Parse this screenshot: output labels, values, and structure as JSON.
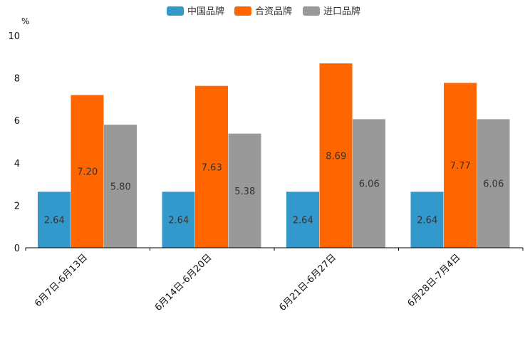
{
  "chart_data": {
    "type": "bar",
    "title": "",
    "ylabel": "%",
    "xlabel": "",
    "ylim": [
      0,
      10
    ],
    "yticks": [
      0,
      2,
      4,
      6,
      8,
      10
    ],
    "ytick_labels": [
      "0",
      "2",
      "4",
      "6",
      "8",
      "10"
    ],
    "categories": [
      "6月7日-6月13日",
      "6月14日-6月20日",
      "6月21日-6月27日",
      "6月28日-7月4日"
    ],
    "series": [
      {
        "name": "中国品牌",
        "color": "#3399cc",
        "values": [
          2.64,
          2.64,
          2.64,
          2.64
        ],
        "labels": [
          "2.64",
          "2.64",
          "2.64",
          "2.64"
        ]
      },
      {
        "name": "合资品牌",
        "color": "#ff6600",
        "values": [
          7.2,
          7.63,
          8.69,
          7.77
        ],
        "labels": [
          "7.20",
          "7.63",
          "8.69",
          "7.77"
        ]
      },
      {
        "name": "进口品牌",
        "color": "#999999",
        "values": [
          5.8,
          5.38,
          6.06,
          6.06
        ],
        "labels": [
          "5.80",
          "5.38",
          "6.06",
          "6.06"
        ]
      }
    ],
    "legend_position": "top-center"
  }
}
